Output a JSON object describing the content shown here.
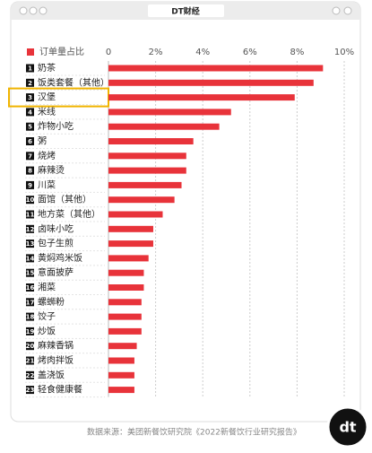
{
  "header": {
    "brand": "DT财经"
  },
  "chart_data": {
    "type": "bar",
    "orientation": "horizontal",
    "legend_label": "订单量占比",
    "color": "#e8333a",
    "ranks": [
      1,
      2,
      3,
      4,
      5,
      6,
      7,
      8,
      9,
      10,
      11,
      12,
      13,
      14,
      15,
      16,
      17,
      18,
      19,
      20,
      21,
      22,
      23
    ],
    "categories": [
      "奶茶",
      "饭类套餐（其他）",
      "汉堡",
      "米线",
      "炸物小吃",
      "粥",
      "烧烤",
      "麻辣烫",
      "川菜",
      "面馆（其他）",
      "地方菜（其他）",
      "卤味小吃",
      "包子生煎",
      "黄焖鸡米饭",
      "意面披萨",
      "湘菜",
      "螺蛳粉",
      "饺子",
      "炒饭",
      "麻辣香锅",
      "烤肉拌饭",
      "盖浇饭",
      "轻食健康餐"
    ],
    "values": [
      9.1,
      8.7,
      7.9,
      5.2,
      4.7,
      3.6,
      3.3,
      3.3,
      3.1,
      2.8,
      2.3,
      1.9,
      1.9,
      1.7,
      1.5,
      1.5,
      1.4,
      1.4,
      1.4,
      1.2,
      1.1,
      1.1,
      1.1
    ],
    "xlim": [
      0,
      10
    ],
    "xticks": [
      0,
      {
        "value": 2,
        "label": "2%"
      },
      {
        "value": 4,
        "label": "4%"
      },
      {
        "value": 6,
        "label": "6%"
      },
      {
        "value": 8,
        "label": "8%"
      },
      {
        "value": 10,
        "label": "10%"
      }
    ],
    "grid": true,
    "highlighted_category": "汉堡",
    "highlight_color": "#f0b400"
  },
  "footer": {
    "source": "数据来源：美团新餐饮研究院《2022新餐饮行业研究报告》",
    "logo": "dt"
  }
}
